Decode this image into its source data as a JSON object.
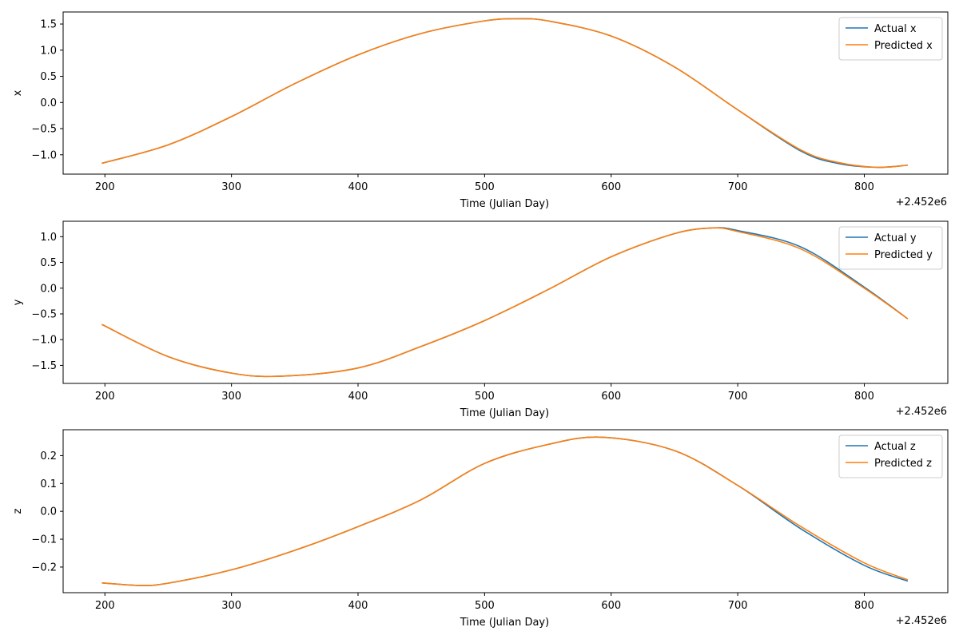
{
  "colors": {
    "actual": "#1f77b4",
    "predicted": "#ff7f0e"
  },
  "chart_data": [
    {
      "type": "line",
      "title": "",
      "xlabel": "Time (Julian Day)",
      "ylabel": "x",
      "x_offset_label": "+2.452e6",
      "xlim": [
        167,
        866
      ],
      "ylim": [
        -1.37,
        1.73
      ],
      "xticks": [
        200,
        300,
        400,
        500,
        600,
        700,
        800
      ],
      "yticks": [
        -1.0,
        -0.5,
        0.0,
        0.5,
        1.0,
        1.5
      ],
      "ytick_labels": [
        "−1.0",
        "−0.5",
        "0.0",
        "0.5",
        "1.0",
        "1.5"
      ],
      "legend": "upper right",
      "grid": false,
      "x": [
        198,
        250,
        300,
        350,
        400,
        450,
        500,
        525,
        550,
        600,
        650,
        700,
        750,
        780,
        810,
        834
      ],
      "series": [
        {
          "name": "Actual x",
          "values": [
            -1.16,
            -0.81,
            -0.27,
            0.36,
            0.91,
            1.32,
            1.56,
            1.6,
            1.56,
            1.27,
            0.68,
            -0.14,
            -0.93,
            -1.17,
            -1.24,
            -1.2
          ]
        },
        {
          "name": "Predicted x",
          "values": [
            -1.16,
            -0.81,
            -0.27,
            0.36,
            0.91,
            1.32,
            1.56,
            1.6,
            1.56,
            1.27,
            0.68,
            -0.14,
            -0.91,
            -1.15,
            -1.24,
            -1.2
          ]
        }
      ]
    },
    {
      "type": "line",
      "title": "",
      "xlabel": "Time (Julian Day)",
      "ylabel": "y",
      "x_offset_label": "+2.452e6",
      "xlim": [
        167,
        866
      ],
      "ylim": [
        -1.85,
        1.3
      ],
      "xticks": [
        200,
        300,
        400,
        500,
        600,
        700,
        800
      ],
      "yticks": [
        -1.5,
        -1.0,
        -0.5,
        0.0,
        0.5,
        1.0
      ],
      "ytick_labels": [
        "−1.5",
        "−1.0",
        "−0.5",
        "0.0",
        "0.5",
        "1.0"
      ],
      "legend": "upper right",
      "grid": false,
      "x": [
        198,
        250,
        300,
        340,
        400,
        450,
        500,
        550,
        600,
        650,
        680,
        700,
        750,
        800,
        834
      ],
      "series": [
        {
          "name": "Actual y",
          "values": [
            -0.71,
            -1.33,
            -1.65,
            -1.71,
            -1.55,
            -1.13,
            -0.63,
            -0.03,
            0.61,
            1.06,
            1.17,
            1.12,
            0.8,
            0.02,
            -0.59
          ]
        },
        {
          "name": "Predicted y",
          "values": [
            -0.71,
            -1.33,
            -1.65,
            -1.71,
            -1.55,
            -1.13,
            -0.63,
            -0.03,
            0.61,
            1.06,
            1.17,
            1.1,
            0.76,
            0.0,
            -0.59
          ]
        }
      ]
    },
    {
      "type": "line",
      "title": "",
      "xlabel": "Time (Julian Day)",
      "ylabel": "z",
      "x_offset_label": "+2.452e6",
      "xlim": [
        167,
        866
      ],
      "ylim": [
        -0.292,
        0.293
      ],
      "xticks": [
        200,
        300,
        400,
        500,
        600,
        700,
        800
      ],
      "yticks": [
        -0.2,
        -0.1,
        0.0,
        0.1,
        0.2
      ],
      "ytick_labels": [
        "−0.2",
        "−0.1",
        "0.0",
        "0.1",
        "0.2"
      ],
      "legend": "upper right",
      "grid": false,
      "x": [
        198,
        228,
        250,
        300,
        350,
        400,
        450,
        500,
        550,
        593,
        650,
        700,
        750,
        800,
        834
      ],
      "series": [
        {
          "name": "Actual z",
          "values": [
            -0.257,
            -0.266,
            -0.258,
            -0.21,
            -0.14,
            -0.055,
            0.042,
            0.172,
            0.24,
            0.266,
            0.218,
            0.093,
            -0.063,
            -0.194,
            -0.25
          ]
        },
        {
          "name": "Predicted z",
          "values": [
            -0.257,
            -0.266,
            -0.258,
            -0.21,
            -0.14,
            -0.055,
            0.042,
            0.172,
            0.24,
            0.266,
            0.218,
            0.093,
            -0.055,
            -0.185,
            -0.245
          ]
        }
      ]
    }
  ]
}
